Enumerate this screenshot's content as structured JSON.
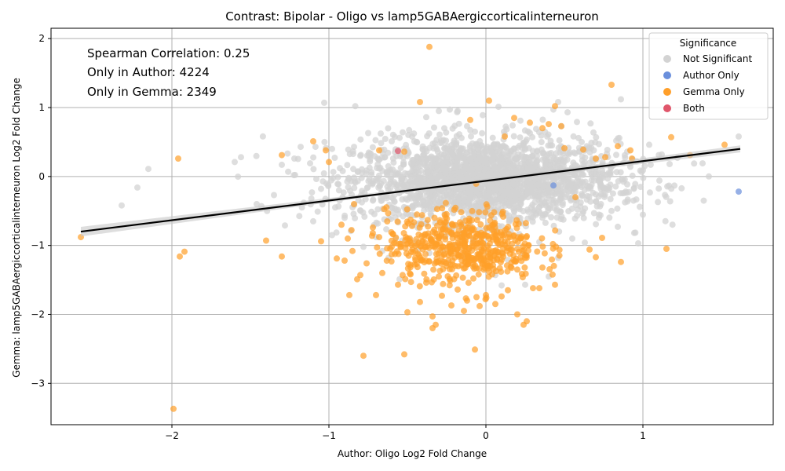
{
  "chart_data": {
    "type": "scatter",
    "title": "Contrast: Bipolar - Oligo vs lamp5GABAergiccorticalinterneuron",
    "xlabel": "Author: Oligo Log2 Fold Change",
    "ylabel": "Gemma: lamp5GABAergiccorticalinterneuron Log2 Fold Change",
    "xlim": [
      -2.77,
      1.83
    ],
    "ylim": [
      -3.6,
      2.15
    ],
    "xticks": [
      -2,
      -1,
      0,
      1
    ],
    "yticks": [
      -3,
      -2,
      -1,
      0,
      1,
      2
    ],
    "grid": true,
    "annotations": [
      "Spearman Correlation: 0.25",
      "Only in Author: 4224",
      "Only in Gemma: 2349"
    ],
    "legend": {
      "title": "Significance",
      "placement": "top-right",
      "entries": [
        {
          "label": "Not Significant",
          "color": "#d3d3d3"
        },
        {
          "label": "Author Only",
          "color": "#6a8fdc"
        },
        {
          "label": "Gemma Only",
          "color": "#ff9f2a"
        },
        {
          "label": "Both",
          "color": "#e0566b"
        }
      ]
    },
    "regression": {
      "x": [
        -2.58,
        1.62
      ],
      "y": [
        -0.8,
        0.4
      ],
      "color": "#000000"
    },
    "series": [
      {
        "name": "Not Significant",
        "color": "#d3d3d3",
        "points": [
          [
            -2.32,
            -0.42
          ],
          [
            -2.22,
            -0.16
          ],
          [
            -2.15,
            0.11
          ],
          [
            -1.6,
            0.21
          ],
          [
            -1.56,
            0.28
          ],
          [
            -1.46,
            -0.4
          ],
          [
            -1.43,
            -0.43
          ],
          [
            -1.35,
            -0.27
          ],
          [
            -1.3,
            0.17
          ],
          [
            -1.22,
            0.26
          ],
          [
            -1.18,
            0.43
          ],
          [
            -1.16,
            -0.38
          ],
          [
            -1.12,
            0.19
          ],
          [
            -1.03,
            1.07
          ],
          [
            -1.05,
            -0.18
          ],
          [
            -0.98,
            0.4
          ],
          [
            -0.96,
            -0.45
          ],
          [
            -0.93,
            0.12
          ],
          [
            -0.9,
            -0.6
          ],
          [
            -0.84,
            0.43
          ],
          [
            -0.8,
            0.3
          ],
          [
            -0.75,
            0.63
          ],
          [
            -0.72,
            -0.35
          ],
          [
            -0.68,
            0.24
          ],
          [
            -0.66,
            -1.08
          ],
          [
            -0.6,
            0.51
          ],
          [
            -0.55,
            0.56
          ],
          [
            -0.53,
            0.64
          ],
          [
            -0.47,
            0.58
          ],
          [
            -0.42,
            -0.68
          ],
          [
            -0.38,
            0.86
          ],
          [
            -0.33,
            0.71
          ],
          [
            -0.3,
            0.95
          ],
          [
            -0.28,
            0.49
          ],
          [
            -0.23,
            0.97
          ],
          [
            -0.18,
            0.95
          ],
          [
            -0.12,
            0.73
          ],
          [
            -0.07,
            0.65
          ],
          [
            -0.02,
            0.89
          ],
          [
            0.08,
            1.01
          ],
          [
            0.12,
            0.61
          ],
          [
            0.17,
            0.74
          ],
          [
            0.22,
            0.81
          ],
          [
            0.28,
            0.63
          ],
          [
            0.32,
            0.69
          ],
          [
            0.39,
            0.58
          ],
          [
            0.43,
            0.97
          ],
          [
            0.46,
            1.08
          ],
          [
            0.52,
            0.93
          ],
          [
            0.58,
            0.79
          ],
          [
            0.61,
            0.5
          ],
          [
            0.66,
            0.41
          ],
          [
            0.72,
            0.47
          ],
          [
            0.77,
            0.33
          ],
          [
            0.83,
            0.52
          ],
          [
            0.86,
            1.12
          ],
          [
            0.9,
            0.36
          ],
          [
            0.92,
            0.14
          ],
          [
            0.96,
            0.22
          ],
          [
            1.0,
            0.09
          ],
          [
            1.04,
            0.46
          ],
          [
            1.12,
            0.32
          ],
          [
            1.17,
            0.18
          ],
          [
            1.22,
            0.27
          ],
          [
            1.38,
            0.19
          ],
          [
            1.42,
            0.0
          ],
          [
            1.61,
            0.58
          ],
          [
            -0.62,
            -1.18
          ],
          [
            -0.55,
            -1.49
          ],
          [
            -0.48,
            -0.92
          ],
          [
            -0.36,
            -1.11
          ],
          [
            -0.27,
            -1.08
          ],
          [
            -0.14,
            -1.16
          ],
          [
            0.06,
            -1.43
          ],
          [
            0.14,
            -1.21
          ],
          [
            0.24,
            -1.12
          ],
          [
            0.34,
            -0.95
          ],
          [
            0.46,
            -1.18
          ],
          [
            0.55,
            -0.9
          ],
          [
            0.63,
            -0.96
          ],
          [
            0.72,
            -0.6
          ],
          [
            0.8,
            -0.5
          ],
          [
            0.84,
            -0.73
          ],
          [
            0.88,
            -0.24
          ],
          [
            0.94,
            -0.35
          ],
          [
            0.97,
            -0.97
          ],
          [
            0.98,
            -0.44
          ],
          [
            -1.28,
            -0.71
          ],
          [
            -1.1,
            -0.65
          ],
          [
            -0.98,
            -0.85
          ],
          [
            -0.86,
            -0.79
          ],
          [
            -0.78,
            -1.02
          ],
          [
            -0.7,
            -0.88
          ],
          [
            0.4,
            -1.45
          ],
          [
            0.25,
            -1.57
          ],
          [
            0.1,
            -1.58
          ]
        ],
        "cloud": {
          "cx": 0.0,
          "cy": -0.05,
          "sx": 0.42,
          "sy": 0.3,
          "n": 2200
        }
      },
      {
        "name": "Gemma Only",
        "color": "#ff9f2a",
        "points": [
          [
            -2.58,
            -0.88
          ],
          [
            -1.96,
            0.26
          ],
          [
            -1.95,
            -1.16
          ],
          [
            -1.92,
            -1.09
          ],
          [
            -1.99,
            -3.37
          ],
          [
            -1.4,
            -0.93
          ],
          [
            -1.3,
            0.31
          ],
          [
            -1.3,
            -1.16
          ],
          [
            -1.1,
            0.51
          ],
          [
            -1.05,
            -0.94
          ],
          [
            -1.02,
            0.38
          ],
          [
            -1.0,
            0.21
          ],
          [
            -0.95,
            -1.19
          ],
          [
            -0.92,
            -0.7
          ],
          [
            -0.88,
            -0.9
          ],
          [
            -0.87,
            -1.72
          ],
          [
            -0.85,
            -1.08
          ],
          [
            -0.82,
            -1.49
          ],
          [
            -0.8,
            -1.43
          ],
          [
            -0.78,
            -2.6
          ],
          [
            -0.76,
            -1.26
          ],
          [
            -0.72,
            -0.74
          ],
          [
            -0.7,
            -1.72
          ],
          [
            -0.68,
            -0.88
          ],
          [
            -0.66,
            -1.4
          ],
          [
            -0.6,
            -1.13
          ],
          [
            -0.56,
            -1.57
          ],
          [
            -0.54,
            -0.98
          ],
          [
            -0.52,
            -2.58
          ],
          [
            -0.5,
            -1.97
          ],
          [
            -0.48,
            -1.42
          ],
          [
            -0.45,
            -1.18
          ],
          [
            -0.42,
            1.08
          ],
          [
            -0.42,
            -1.82
          ],
          [
            -0.38,
            -1.54
          ],
          [
            -0.36,
            1.88
          ],
          [
            -0.34,
            -2.03
          ],
          [
            -0.34,
            -2.2
          ],
          [
            -0.32,
            -2.15
          ],
          [
            -0.3,
            -1.45
          ],
          [
            -0.28,
            -1.73
          ],
          [
            -0.22,
            -1.87
          ],
          [
            -0.18,
            -1.64
          ],
          [
            -0.14,
            -1.95
          ],
          [
            -0.12,
            -1.8
          ],
          [
            -0.08,
            -1.48
          ],
          [
            -0.07,
            -2.51
          ],
          [
            -0.06,
            -1.75
          ],
          [
            -0.04,
            -1.88
          ],
          [
            0.0,
            -1.72
          ],
          [
            0.02,
            1.1
          ],
          [
            0.06,
            -1.85
          ],
          [
            0.1,
            -1.74
          ],
          [
            0.14,
            -1.65
          ],
          [
            0.2,
            -2.0
          ],
          [
            0.24,
            -2.15
          ],
          [
            0.26,
            -2.1
          ],
          [
            0.3,
            -1.62
          ],
          [
            0.34,
            -1.62
          ],
          [
            0.44,
            -1.57
          ],
          [
            0.44,
            1.02
          ],
          [
            0.5,
            0.41
          ],
          [
            0.57,
            -0.3
          ],
          [
            0.62,
            0.39
          ],
          [
            0.66,
            -1.06
          ],
          [
            0.7,
            0.26
          ],
          [
            0.7,
            -1.17
          ],
          [
            0.74,
            -0.89
          ],
          [
            0.76,
            0.28
          ],
          [
            0.8,
            1.33
          ],
          [
            0.84,
            0.44
          ],
          [
            0.86,
            -1.24
          ],
          [
            0.92,
            0.38
          ],
          [
            0.93,
            0.26
          ],
          [
            1.15,
            -1.05
          ],
          [
            1.18,
            0.57
          ],
          [
            1.3,
            0.31
          ],
          [
            1.52,
            0.46
          ],
          [
            0.36,
            0.7
          ],
          [
            0.18,
            0.85
          ],
          [
            0.28,
            0.78
          ],
          [
            -0.1,
            0.82
          ],
          [
            -0.68,
            0.38
          ],
          [
            -0.52,
            0.36
          ],
          [
            0.12,
            0.58
          ],
          [
            0.4,
            0.76
          ],
          [
            0.48,
            0.73
          ],
          [
            -0.84,
            -0.4
          ],
          [
            -0.9,
            -1.22
          ],
          [
            -0.6,
            -1.02
          ],
          [
            -0.25,
            -1.3
          ],
          [
            0.04,
            -1.42
          ],
          [
            0.2,
            -1.35
          ],
          [
            0.36,
            -1.32
          ]
        ],
        "cloud": {
          "cx": -0.15,
          "cy": -1.0,
          "sx": 0.24,
          "sy": 0.25,
          "n": 520
        }
      },
      {
        "name": "Author Only",
        "color": "#6a8fdc",
        "points": [
          [
            1.61,
            -0.22
          ],
          [
            0.43,
            -0.13
          ]
        ]
      },
      {
        "name": "Both",
        "color": "#e0566b",
        "points": [
          [
            -0.56,
            0.37
          ]
        ]
      }
    ]
  }
}
